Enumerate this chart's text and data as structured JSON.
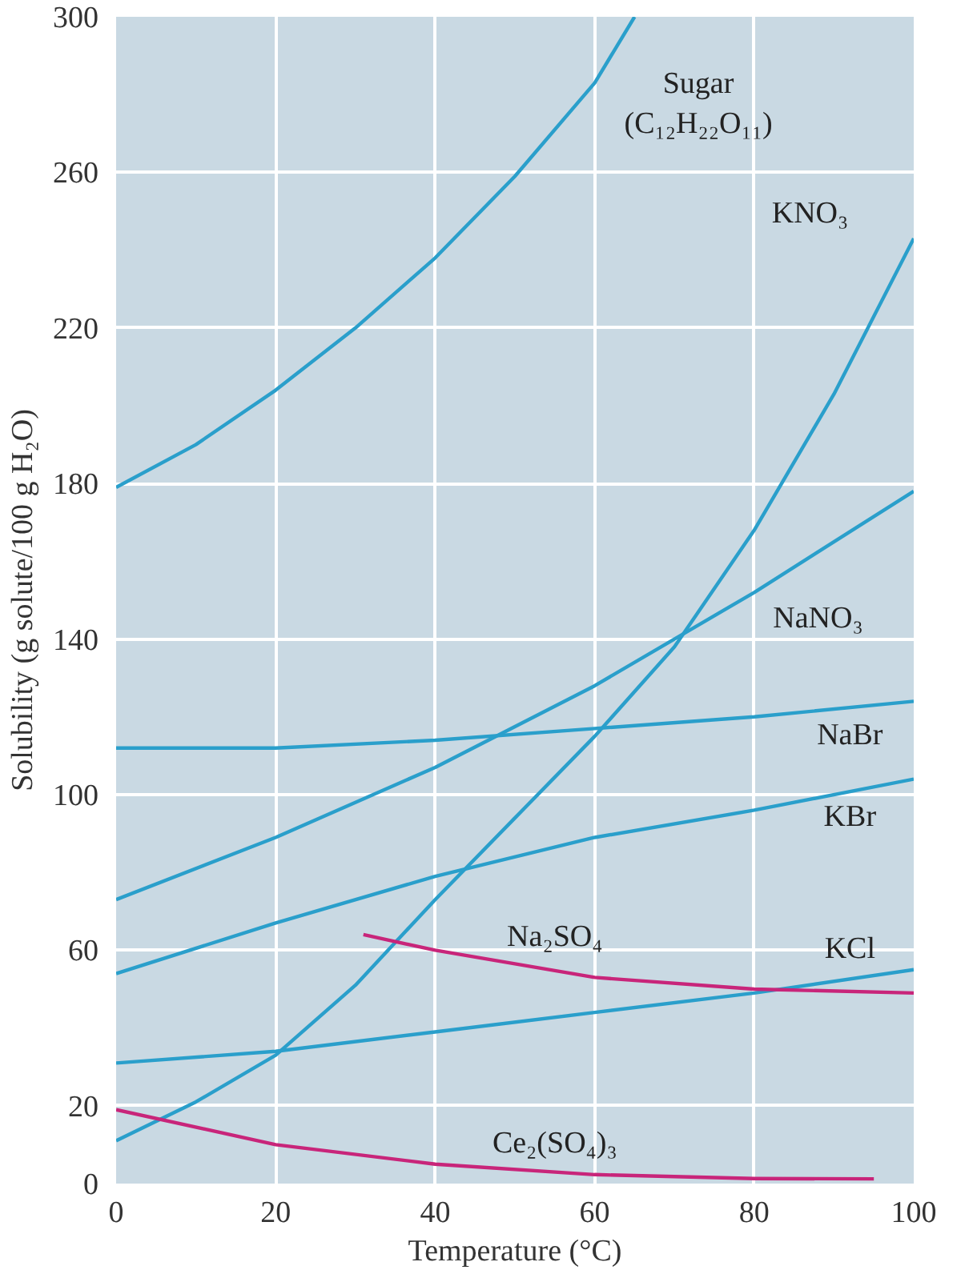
{
  "chart_data": {
    "type": "line",
    "xlabel": "Temperature (°C)",
    "ylabel": "Solubility (g solute/100 g H₂O)",
    "xlim": [
      0,
      100
    ],
    "ylim": [
      0,
      300
    ],
    "xticks": [
      0,
      20,
      40,
      60,
      80,
      100
    ],
    "yticks": [
      0,
      20,
      60,
      100,
      140,
      180,
      220,
      260,
      300
    ],
    "grid": true,
    "marker": "none",
    "line_style": "solid",
    "series": [
      {
        "name": "Sugar (C₁₂H₂₂O₁₁)",
        "color": "#2a9fcb",
        "x": [
          0,
          10,
          20,
          30,
          40,
          50,
          60,
          65
        ],
        "values": [
          179,
          190,
          204,
          220,
          238,
          259,
          283,
          300
        ]
      },
      {
        "name": "KNO₃",
        "color": "#2a9fcb",
        "x": [
          0,
          10,
          20,
          30,
          40,
          50,
          60,
          70,
          80,
          90,
          100
        ],
        "values": [
          11,
          21,
          33,
          51,
          73,
          94,
          115,
          138,
          168,
          203,
          243
        ]
      },
      {
        "name": "NaNO₃",
        "color": "#2a9fcb",
        "x": [
          0,
          20,
          40,
          60,
          80,
          100
        ],
        "values": [
          73,
          89,
          107,
          128,
          152,
          178
        ]
      },
      {
        "name": "NaBr",
        "color": "#2a9fcb",
        "x": [
          0,
          20,
          40,
          60,
          80,
          100
        ],
        "values": [
          112,
          112,
          114,
          117,
          120,
          124
        ]
      },
      {
        "name": "KBr",
        "color": "#2a9fcb",
        "x": [
          0,
          20,
          40,
          60,
          80,
          100
        ],
        "values": [
          54,
          67,
          79,
          89,
          96,
          104
        ]
      },
      {
        "name": "KCl",
        "color": "#2a9fcb",
        "x": [
          0,
          20,
          40,
          60,
          80,
          100
        ],
        "values": [
          31,
          34,
          39,
          44,
          49,
          55
        ]
      },
      {
        "name": "Na₂SO₄",
        "color": "#c8257a",
        "x": [
          31,
          40,
          60,
          80,
          100
        ],
        "values": [
          64,
          60,
          53,
          50,
          49
        ]
      },
      {
        "name": "Ce₂(SO₄)₃",
        "color": "#c8257a",
        "x": [
          0,
          20,
          40,
          60,
          80,
          95
        ],
        "values": [
          19,
          10,
          5,
          2.3,
          1.3,
          1.2
        ]
      }
    ]
  }
}
